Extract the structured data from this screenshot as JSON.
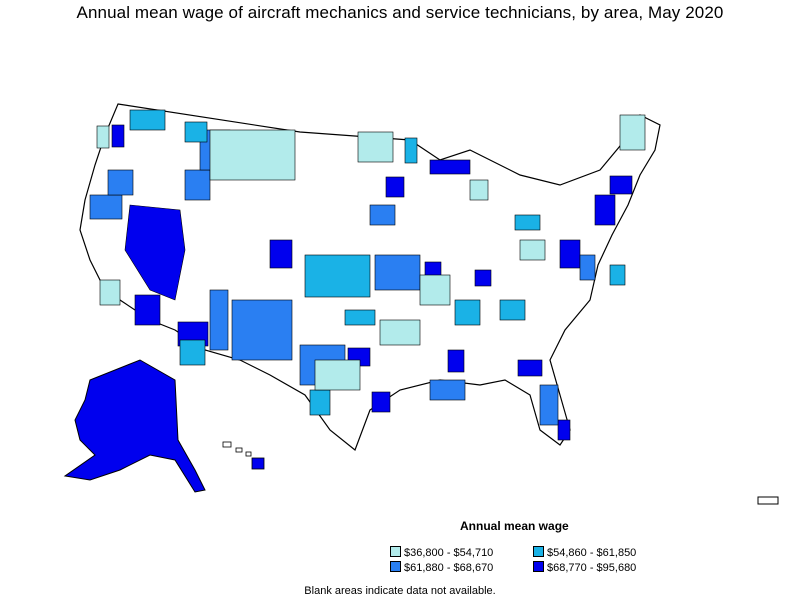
{
  "title": "Annual mean wage of aircraft mechanics and service technicians, by area, May 2020",
  "legend": {
    "title": "Annual mean wage",
    "items": [
      {
        "label": "$36,800 - $54,710",
        "color": "#b2ebeb"
      },
      {
        "label": "$54,860 - $61,850",
        "color": "#1ab2e6"
      },
      {
        "label": "$61,880 - $68,670",
        "color": "#2a7ff2"
      },
      {
        "label": "$68,770 - $95,680",
        "color": "#0000ee"
      }
    ]
  },
  "note": "Blank areas indicate data not available.",
  "colors": {
    "blank": "#ffffff",
    "border": "#000000"
  }
}
